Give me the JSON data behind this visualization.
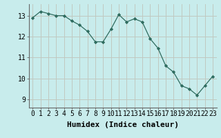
{
  "x": [
    0,
    1,
    2,
    3,
    4,
    5,
    6,
    7,
    8,
    9,
    10,
    11,
    12,
    13,
    14,
    15,
    16,
    17,
    18,
    19,
    20,
    21,
    22,
    23
  ],
  "y": [
    12.9,
    13.2,
    13.1,
    13.0,
    13.0,
    12.75,
    12.55,
    12.25,
    11.75,
    11.75,
    12.35,
    13.05,
    12.7,
    12.85,
    12.7,
    11.9,
    11.45,
    10.6,
    10.3,
    9.65,
    9.5,
    9.2,
    9.65,
    10.1
  ],
  "line_color": "#2e6b5e",
  "marker": "D",
  "marker_size": 2.2,
  "background_color": "#c8ecec",
  "grid_color": "#c0c8c0",
  "xlabel": "Humidex (Indice chaleur)",
  "xlabel_fontsize": 8,
  "tick_fontsize": 7,
  "ylim": [
    8.6,
    13.55
  ],
  "xlim": [
    -0.5,
    23.5
  ],
  "yticks": [
    9,
    10,
    11,
    12,
    13
  ],
  "xticks": [
    0,
    1,
    2,
    3,
    4,
    5,
    6,
    7,
    8,
    9,
    10,
    11,
    12,
    13,
    14,
    15,
    16,
    17,
    18,
    19,
    20,
    21,
    22,
    23
  ]
}
